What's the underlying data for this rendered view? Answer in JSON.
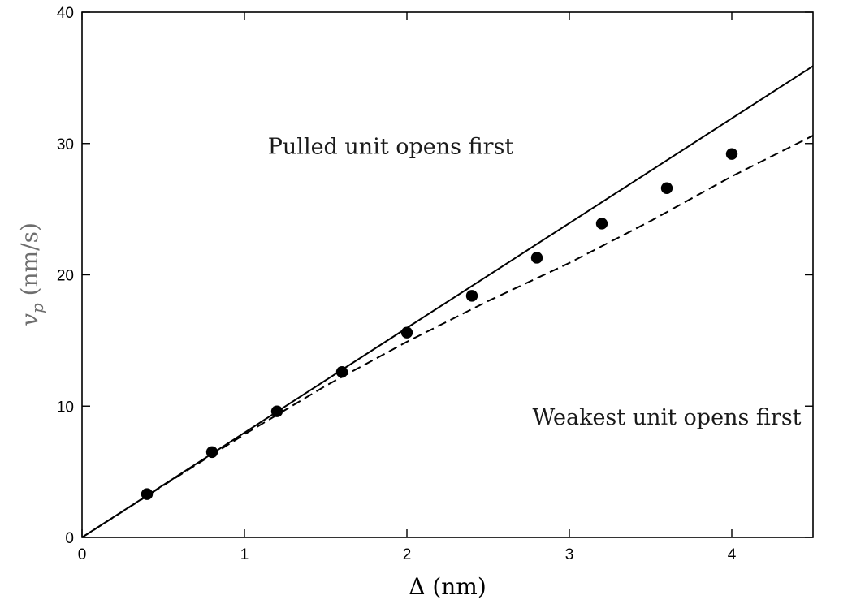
{
  "chart_data": {
    "type": "scatter",
    "title": "",
    "xlabel": "Δ (nm)",
    "ylabel": "v_p (nm/s)",
    "ylabel_parts": {
      "symbol": "v",
      "subscript": "p",
      "unit": " (nm/s)"
    },
    "xlim": [
      0,
      4.5
    ],
    "ylim": [
      0,
      40
    ],
    "xticks": [
      0,
      1,
      2,
      3,
      4
    ],
    "yticks": [
      0,
      10,
      20,
      30,
      40
    ],
    "grid": false,
    "annotations": [
      {
        "text": "Pulled unit opens first",
        "x": 1.9,
        "y": 29.2
      },
      {
        "text": "Weakest unit opens first",
        "x": 3.6,
        "y": 8.6
      }
    ],
    "series": [
      {
        "kind": "points",
        "x": [
          0.4,
          0.8,
          1.2,
          1.6,
          2.0,
          2.4,
          2.8,
          3.2,
          3.6,
          4.0
        ],
        "y": [
          3.3,
          6.5,
          9.6,
          12.6,
          15.6,
          18.4,
          21.3,
          23.9,
          26.6,
          29.2
        ],
        "color": "#000000"
      },
      {
        "kind": "solid-line",
        "x": [
          0,
          4.5
        ],
        "y": [
          0,
          35.9
        ],
        "color": "#000000"
      },
      {
        "kind": "dashed-line",
        "x": [
          0,
          0.5,
          1.0,
          1.5,
          2.0,
          2.5,
          3.0,
          3.5,
          4.0,
          4.5
        ],
        "y": [
          0,
          3.95,
          7.85,
          11.55,
          14.9,
          18.0,
          20.9,
          24.1,
          27.5,
          30.6
        ],
        "color": "#000000"
      }
    ]
  }
}
